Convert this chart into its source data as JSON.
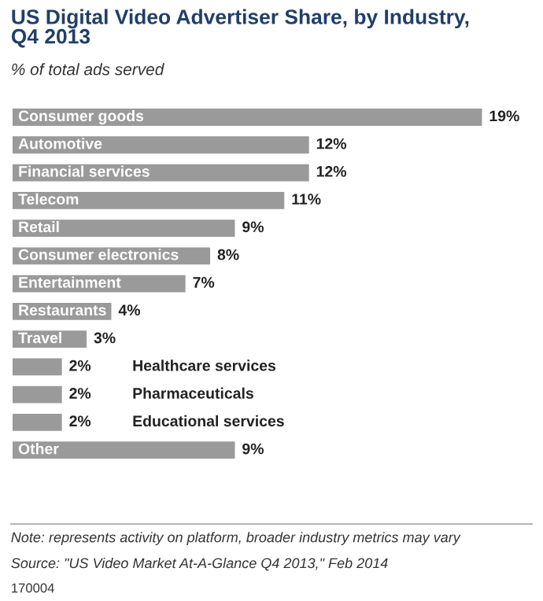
{
  "chart_data": {
    "type": "bar",
    "orientation": "horizontal",
    "title": "US Digital Video Advertiser Share, by Industry,\nQ4 2013",
    "subtitle": "% of total ads served",
    "categories": [
      "Consumer goods",
      "Automotive",
      "Financial services",
      "Telecom",
      "Retail",
      "Consumer electronics",
      "Entertainment",
      "Restaurants",
      "Travel",
      "Healthcare services",
      "Pharmaceuticals",
      "Educational services",
      "Other"
    ],
    "values": [
      19,
      12,
      12,
      11,
      9,
      8,
      7,
      4,
      3,
      2,
      2,
      2,
      9
    ],
    "value_labels": [
      "19%",
      "12%",
      "12%",
      "11%",
      "9%",
      "8%",
      "7%",
      "4%",
      "3%",
      "2%",
      "2%",
      "2%",
      "9%"
    ],
    "color": "#9a9a9a",
    "annotations": [
      "Note: represents activity on platform, broader industry metrics may vary",
      "Source: \"US Video Market At-A-Glance Q4 2013,\" Feb 2014",
      "170004"
    ]
  }
}
